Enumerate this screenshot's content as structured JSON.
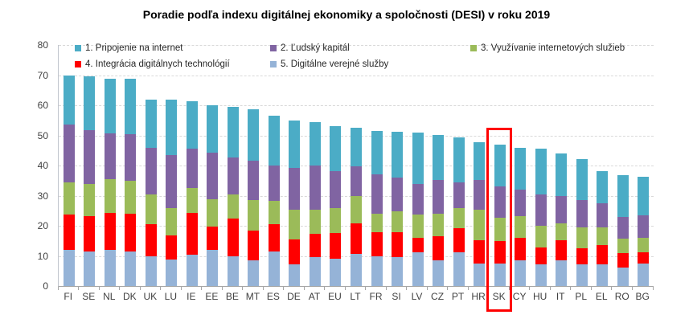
{
  "title": "Poradie podľa indexu digitálnej ekonomiky a spoločnosti (DESI) v roku 2019",
  "chart_data": {
    "type": "bar",
    "stacked": true,
    "title": "Poradie podľa indexu digitálnej ekonomiky a spoločnosti (DESI) v roku 2019",
    "categories": [
      "FI",
      "SE",
      "NL",
      "DK",
      "UK",
      "LU",
      "IE",
      "EE",
      "BE",
      "MT",
      "ES",
      "DE",
      "AT",
      "EU",
      "LT",
      "FR",
      "SI",
      "LV",
      "CZ",
      "PT",
      "HR",
      "SK",
      "CY",
      "HU",
      "IT",
      "PL",
      "EL",
      "RO",
      "BG"
    ],
    "series": [
      {
        "name": "1. Pripojenie na internet",
        "color": "#4BACC6",
        "values": [
          16.2,
          17.7,
          18.1,
          18.5,
          16.0,
          18.3,
          15.6,
          15.7,
          16.7,
          17.1,
          16.5,
          15.6,
          14.5,
          15.1,
          12.9,
          14.2,
          15.2,
          17.1,
          15.0,
          15.0,
          12.5,
          13.8,
          13.8,
          15.2,
          14.2,
          13.7,
          10.5,
          13.8,
          12.7
        ]
      },
      {
        "name": "2. Ľudský kapitál",
        "color": "#8064A2",
        "values": [
          19.3,
          18.0,
          15.3,
          15.3,
          15.5,
          17.5,
          13.2,
          15.5,
          12.3,
          13.0,
          11.8,
          13.8,
          14.5,
          12.2,
          9.8,
          13.1,
          11.4,
          10.2,
          11.3,
          8.4,
          9.8,
          10.3,
          8.9,
          10.2,
          9.0,
          8.9,
          8.0,
          7.3,
          7.5
        ]
      },
      {
        "name": "3. Využívanie internetových služieb",
        "color": "#9BBB59",
        "values": [
          10.7,
          10.6,
          11.1,
          11.0,
          10.0,
          9.3,
          8.3,
          9.0,
          8.2,
          10.0,
          7.8,
          9.8,
          8.0,
          8.3,
          9.0,
          6.3,
          6.9,
          7.6,
          7.3,
          6.6,
          10.2,
          7.8,
          7.1,
          7.4,
          5.7,
          7.1,
          6.0,
          4.6,
          4.8
        ]
      },
      {
        "name": "4. Integrácia digitálnych technológií",
        "color": "#FF0000",
        "values": [
          11.6,
          11.7,
          12.4,
          12.5,
          10.5,
          7.9,
          13.7,
          7.8,
          12.5,
          9.9,
          8.9,
          8.3,
          7.9,
          8.5,
          10.2,
          8.0,
          8.3,
          5.0,
          8.0,
          8.0,
          7.6,
          7.3,
          7.5,
          5.6,
          6.7,
          5.2,
          6.3,
          4.8,
          3.9
        ]
      },
      {
        "name": "5. Digitálne verejné služby",
        "color": "#95B3D7",
        "values": [
          12.1,
          11.5,
          12.0,
          11.5,
          10.0,
          8.8,
          10.5,
          12.0,
          9.8,
          8.6,
          11.6,
          7.3,
          9.5,
          9.1,
          10.7,
          9.8,
          9.5,
          11.1,
          8.6,
          11.3,
          7.6,
          7.6,
          8.6,
          7.1,
          8.5,
          7.3,
          7.3,
          6.2,
          7.4
        ]
      }
    ],
    "stack_order_bottom_to_top": [
      "5. Digitálne verejné služby",
      "4. Integrácia digitálnych technológií",
      "3. Využívanie internetových služieb",
      "2. Ľudský kapitál",
      "1. Pripojenie na internet"
    ],
    "totals": [
      69.9,
      69.5,
      68.9,
      68.8,
      62.0,
      61.8,
      61.3,
      60.0,
      59.5,
      58.6,
      56.6,
      54.8,
      54.4,
      53.2,
      52.6,
      51.4,
      51.3,
      51.0,
      50.2,
      49.3,
      47.7,
      46.8,
      45.9,
      45.5,
      44.1,
      42.2,
      38.1,
      36.7,
      36.3
    ],
    "xlabel": "",
    "ylabel": "",
    "ylim": [
      0,
      80
    ],
    "yticks": [
      0,
      10,
      20,
      30,
      40,
      50,
      60,
      70,
      80
    ],
    "grid": "horizontal-dashed",
    "legend_position": "top-inside-two-rows",
    "highlight": {
      "category": "SK",
      "box_color": "#FF0000"
    },
    "colors": {
      "grid": "#D9D9D9",
      "axis": "#A6A6A6",
      "tick_text": "#404040"
    }
  }
}
